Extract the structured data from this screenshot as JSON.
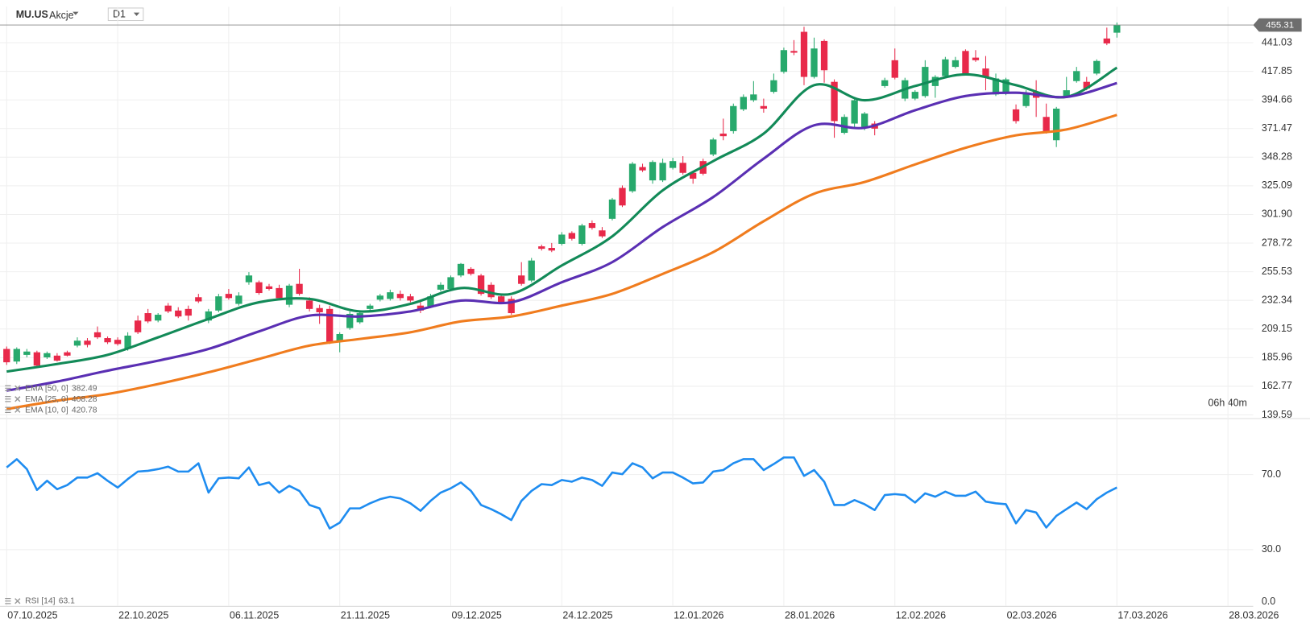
{
  "chart_data": [
    {
      "type": "candlestick",
      "title": "MU.US",
      "subtitle": "Akcje",
      "timeframe": "D1",
      "countdown": "06h 40m",
      "up_color": "#27a96c",
      "down_color": "#e8294a",
      "grid": true,
      "xlim": [
        -0.66,
        123.5
      ],
      "xticks": [
        {
          "value": 0,
          "label": "07.10.2025"
        },
        {
          "value": 11,
          "label": "22.10.2025"
        },
        {
          "value": 22,
          "label": "06.11.2025"
        },
        {
          "value": 33,
          "label": "21.11.2025"
        },
        {
          "value": 44,
          "label": "09.12.2025"
        },
        {
          "value": 55,
          "label": "24.12.2025"
        },
        {
          "value": 66,
          "label": "12.01.2026"
        },
        {
          "value": 77,
          "label": "28.01.2026"
        },
        {
          "value": 88,
          "label": "12.02.2026"
        },
        {
          "value": 99,
          "label": "02.03.2026"
        },
        {
          "value": 110,
          "label": "17.03.2026"
        },
        {
          "value": 121,
          "label": "28.03.2026"
        }
      ],
      "ylim": [
        137.56,
        468.74
      ],
      "yticks": [
        139.59,
        162.77,
        185.96,
        209.15,
        232.34,
        255.53,
        278.72,
        {
          "value": 301.9,
          "label": "301.90"
        },
        325.09,
        348.28,
        371.47,
        394.66,
        417.85,
        441.03
      ],
      "open": [
        193.0,
        182.8,
        188.2,
        190.3,
        186.2,
        187.6,
        190.3,
        195.7,
        199.7,
        206.5,
        201.8,
        200.4,
        193.0,
        216.0,
        222.0,
        216.0,
        228.1,
        224.1,
        225.4,
        234.9,
        216.0,
        224.1,
        237.6,
        229.5,
        247.0,
        247.0,
        243.7,
        242.3,
        228.8,
        245.7,
        232.2,
        226.1,
        225.4,
        199.7,
        209.9,
        214.6,
        225.4,
        232.9,
        233.5,
        237.6,
        235.6,
        228.1,
        227.5,
        241.0,
        241.6,
        252.5,
        257.9,
        252.5,
        245.0,
        235.6,
        233.5,
        252.5,
        248.4,
        276.1,
        274.8,
        278.1,
        286.9,
        278.1,
        295.0,
        289.0,
        298.4,
        323.4,
        320.7,
        340.3,
        329.5,
        329.5,
        339.6,
        343.7,
        335.6,
        345.1,
        350.5,
        367.4,
        369.4,
        387.0,
        394.4,
        389.7,
        401.2,
        417.4,
        434.3,
        449.8,
        413.3,
        442.4,
        409.3,
        368.0,
        375.5,
        372.8,
        375.5,
        405.9,
        426.8,
        395.7,
        395.7,
        397.8,
        405.9,
        414.0,
        421.4,
        434.3,
        428.9,
        420.1,
        399.1,
        399.8,
        387.0,
        389.7,
        401.2,
        380.9,
        362.0,
        397.8,
        409.9,
        409.3,
        416.0,
        444.4,
        449.1
      ],
      "high": [
        195.0,
        194.3,
        193.0,
        191.6,
        190.9,
        189.6,
        191.6,
        202.4,
        201.8,
        211.2,
        203.1,
        202.4,
        206.5,
        220.0,
        225.4,
        222.0,
        230.2,
        226.8,
        228.1,
        237.6,
        225.4,
        237.6,
        241.6,
        238.9,
        255.2,
        248.4,
        245.7,
        245.0,
        245.7,
        257.9,
        234.9,
        228.8,
        228.1,
        206.5,
        223.4,
        223.4,
        229.5,
        237.6,
        241.0,
        240.3,
        237.6,
        230.8,
        237.6,
        247.0,
        252.5,
        262.6,
        259.2,
        253.8,
        247.0,
        237.6,
        235.6,
        263.3,
        266.7,
        277.5,
        278.8,
        287.6,
        288.3,
        294.4,
        297.1,
        291.7,
        315.3,
        325.4,
        344.4,
        343.0,
        345.7,
        347.1,
        347.8,
        349.1,
        336.9,
        347.1,
        364.0,
        379.5,
        391.7,
        399.1,
        409.9,
        395.7,
        416.0,
        437.0,
        443.1,
        453.9,
        445.1,
        443.7,
        411.3,
        382.9,
        395.7,
        384.9,
        377.5,
        412.6,
        436.3,
        412.6,
        402.5,
        426.8,
        414.7,
        429.5,
        429.5,
        435.6,
        435.0,
        430.2,
        416.0,
        412.6,
        391.0,
        402.5,
        410.6,
        391.7,
        389.0,
        413.3,
        421.4,
        413.3,
        427.5,
        453.2,
        457.3
      ],
      "low": [
        180.1,
        180.8,
        186.2,
        178.1,
        184.9,
        182.8,
        186.9,
        194.3,
        194.3,
        201.1,
        197.0,
        195.7,
        191.6,
        205.1,
        213.9,
        214.6,
        222.0,
        218.0,
        216.0,
        230.2,
        213.9,
        222.7,
        232.9,
        228.1,
        245.0,
        236.9,
        240.3,
        232.9,
        226.8,
        236.2,
        223.4,
        213.3,
        197.0,
        190.3,
        208.5,
        213.3,
        224.1,
        231.5,
        232.2,
        232.2,
        230.8,
        222.0,
        226.1,
        239.6,
        240.3,
        251.1,
        252.5,
        236.2,
        233.5,
        229.5,
        220.7,
        244.3,
        247.0,
        272.7,
        271.4,
        276.8,
        280.8,
        276.8,
        289.6,
        282.9,
        297.1,
        307.9,
        319.4,
        336.3,
        326.8,
        328.2,
        338.3,
        334.2,
        326.8,
        333.6,
        349.1,
        362.0,
        367.4,
        385.6,
        393.0,
        384.3,
        399.8,
        416.0,
        430.9,
        406.6,
        412.0,
        408.6,
        364.0,
        366.7,
        372.8,
        370.1,
        366.0,
        404.5,
        411.3,
        393.7,
        394.4,
        396.4,
        396.4,
        412.6,
        420.1,
        414.7,
        425.5,
        402.5,
        397.8,
        398.5,
        375.5,
        388.3,
        380.9,
        367.4,
        356.5,
        396.4,
        408.6,
        402.5,
        414.7,
        439.0,
        445.1
      ],
      "close": [
        182.2,
        193.0,
        190.9,
        179.5,
        189.6,
        183.5,
        187.6,
        199.7,
        196.3,
        202.4,
        198.4,
        197.0,
        203.8,
        206.5,
        215.3,
        220.7,
        223.4,
        219.3,
        220.0,
        231.5,
        223.4,
        235.6,
        234.2,
        236.2,
        252.5,
        238.3,
        241.6,
        234.2,
        244.3,
        237.6,
        225.4,
        222.7,
        198.4,
        205.1,
        221.4,
        222.0,
        228.1,
        236.2,
        238.9,
        234.2,
        232.2,
        224.1,
        235.6,
        245.0,
        251.1,
        261.9,
        253.8,
        237.6,
        234.9,
        230.8,
        222.0,
        245.7,
        264.6,
        274.1,
        272.7,
        285.6,
        282.2,
        293.0,
        291.0,
        284.2,
        314.0,
        309.2,
        343.0,
        337.6,
        344.4,
        343.7,
        345.1,
        335.6,
        330.9,
        334.9,
        362.6,
        365.3,
        389.7,
        397.1,
        399.1,
        387.6,
        410.6,
        435.0,
        432.9,
        413.3,
        436.3,
        418.7,
        377.5,
        380.9,
        394.4,
        383.6,
        371.4,
        410.6,
        412.6,
        410.6,
        401.2,
        421.4,
        413.3,
        427.5,
        426.8,
        416.0,
        426.8,
        413.3,
        412.0,
        411.3,
        377.5,
        400.5,
        396.4,
        368.7,
        387.6,
        402.5,
        418.0,
        403.9,
        426.2,
        440.4,
        455.31
      ],
      "series": [
        {
          "name": "EMA [50, 0]",
          "color": "#f07c1e",
          "x": [
            0,
            5,
            10,
            15,
            20,
            25,
            30,
            35,
            40,
            45,
            50,
            55,
            60,
            65,
            70,
            75,
            80,
            85,
            90,
            95,
            100,
            105,
            110
          ],
          "values": [
            144.3,
            151.1,
            156.5,
            164.6,
            174.1,
            184.9,
            195.7,
            201.1,
            206.5,
            215.3,
            219.3,
            228.1,
            237.6,
            253.8,
            271.4,
            296.4,
            318.7,
            328.2,
            342.4,
            355.9,
            366.0,
            370.7,
            382.49
          ]
        },
        {
          "name": "EMA [25, 0]",
          "color": "#5a2fb3",
          "x": [
            0,
            5,
            10,
            15,
            20,
            25,
            30,
            35,
            40,
            45,
            50,
            55,
            60,
            65,
            70,
            75,
            80,
            85,
            90,
            95,
            100,
            105,
            110
          ],
          "values": [
            159.2,
            166.6,
            175.4,
            183.5,
            193.0,
            207.2,
            220.0,
            219.3,
            223.4,
            232.2,
            230.8,
            247.0,
            263.3,
            291.7,
            316.0,
            347.1,
            374.1,
            372.1,
            386.3,
            397.8,
            400.5,
            397.1,
            408.28
          ]
        },
        {
          "name": "EMA [10, 0]",
          "color": "#128a58",
          "x": [
            0,
            5,
            10,
            15,
            20,
            25,
            30,
            35,
            40,
            45,
            50,
            55,
            60,
            65,
            70,
            75,
            80,
            85,
            90,
            95,
            100,
            105,
            110
          ],
          "values": [
            174.7,
            180.8,
            188.2,
            202.4,
            217.3,
            230.8,
            233.5,
            223.4,
            229.5,
            242.3,
            237.6,
            260.6,
            284.2,
            321.4,
            345.1,
            367.4,
            406.6,
            394.4,
            405.9,
            415.3,
            406.6,
            397.1,
            420.78
          ]
        }
      ]
    },
    {
      "type": "line",
      "grid": true,
      "ylim": [
        0,
        98.2
      ],
      "yticks": [
        {
          "value": 0,
          "label": "0.0"
        },
        {
          "value": 30,
          "label": "30.0"
        },
        {
          "value": 70,
          "label": "70.0"
        }
      ],
      "series": [
        {
          "name": "RSI [14]",
          "color": "#1e8cf0",
          "values": [
            73.8,
            78.2,
            72.9,
            61.8,
            66.7,
            62.2,
            64.4,
            68.4,
            68.4,
            70.7,
            66.7,
            63.1,
            67.6,
            71.6,
            72.0,
            72.9,
            74.2,
            71.6,
            71.6,
            76.0,
            60.4,
            68.0,
            68.4,
            68.0,
            73.8,
            64.4,
            65.8,
            60.4,
            64.0,
            61.3,
            53.8,
            52.0,
            41.3,
            44.4,
            52.0,
            52.0,
            54.7,
            56.9,
            58.2,
            57.3,
            54.7,
            50.7,
            56.0,
            60.4,
            62.7,
            65.8,
            61.3,
            53.8,
            51.6,
            48.9,
            45.8,
            56.0,
            61.3,
            64.9,
            64.4,
            67.1,
            66.2,
            68.4,
            67.1,
            64.0,
            71.1,
            70.2,
            76.0,
            73.8,
            68.0,
            71.1,
            71.1,
            68.4,
            65.3,
            65.8,
            71.6,
            72.4,
            76.0,
            78.2,
            78.2,
            72.4,
            75.6,
            79.1,
            79.1,
            69.3,
            72.4,
            66.2,
            53.8,
            53.8,
            56.4,
            54.2,
            51.1,
            59.1,
            59.6,
            59.1,
            55.1,
            60.0,
            58.2,
            60.9,
            58.7,
            58.7,
            60.9,
            55.6,
            54.7,
            54.2,
            44.0,
            51.1,
            49.8,
            41.8,
            48.0,
            51.6,
            55.1,
            51.6,
            56.9,
            60.4,
            63.1
          ]
        }
      ]
    }
  ]
}
